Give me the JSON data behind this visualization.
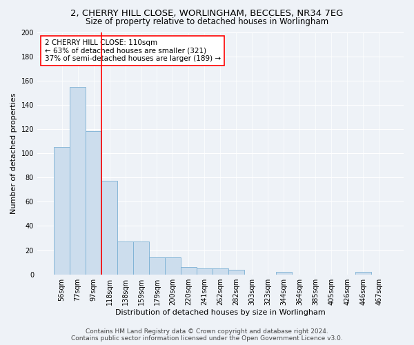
{
  "title1": "2, CHERRY HILL CLOSE, WORLINGHAM, BECCLES, NR34 7EG",
  "title2": "Size of property relative to detached houses in Worlingham",
  "xlabel": "Distribution of detached houses by size in Worlingham",
  "ylabel": "Number of detached properties",
  "bar_color": "#ccdded",
  "bar_edge_color": "#7ab0d4",
  "categories": [
    "56sqm",
    "77sqm",
    "97sqm",
    "118sqm",
    "138sqm",
    "159sqm",
    "179sqm",
    "200sqm",
    "220sqm",
    "241sqm",
    "262sqm",
    "282sqm",
    "303sqm",
    "323sqm",
    "344sqm",
    "364sqm",
    "385sqm",
    "405sqm",
    "426sqm",
    "446sqm",
    "467sqm"
  ],
  "values": [
    105,
    155,
    118,
    77,
    27,
    27,
    14,
    14,
    6,
    5,
    5,
    4,
    0,
    0,
    2,
    0,
    0,
    0,
    0,
    2,
    0
  ],
  "red_line_x": 2.5,
  "ylim": [
    0,
    200
  ],
  "yticks": [
    0,
    20,
    40,
    60,
    80,
    100,
    120,
    140,
    160,
    180,
    200
  ],
  "annotation_text_line1": "2 CHERRY HILL CLOSE: 110sqm",
  "annotation_text_line2": "← 63% of detached houses are smaller (321)",
  "annotation_text_line3": "37% of semi-detached houses are larger (189) →",
  "footer1": "Contains HM Land Registry data © Crown copyright and database right 2024.",
  "footer2": "Contains public sector information licensed under the Open Government Licence v3.0.",
  "background_color": "#eef2f7",
  "grid_color": "#ffffff",
  "title_fontsize": 9.5,
  "subtitle_fontsize": 8.5,
  "axis_label_fontsize": 8,
  "tick_fontsize": 7,
  "annotation_fontsize": 7.5,
  "footer_fontsize": 6.5
}
